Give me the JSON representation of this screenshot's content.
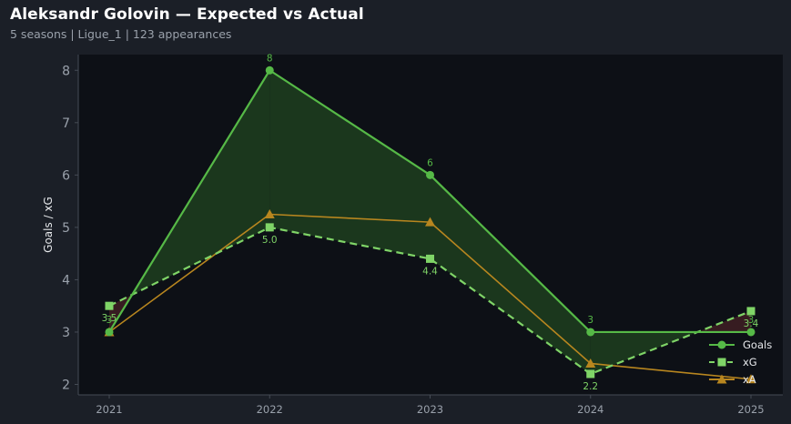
{
  "header": {
    "title": "Aleksandr Golovin — Expected vs Actual",
    "subtitle": "5 seasons | Ligue_1 | 123 appearances"
  },
  "chart_data": {
    "type": "line",
    "x": [
      "2021",
      "2022",
      "2023",
      "2024",
      "2025"
    ],
    "ylabel": "Goals / xG",
    "ylim": [
      1.8,
      8.3
    ],
    "yticks": [
      2,
      3,
      4,
      5,
      6,
      7,
      8
    ],
    "grid": false,
    "legend": "bottom-right",
    "series": [
      {
        "name": "Goals",
        "values": [
          3,
          8,
          6,
          3,
          3
        ],
        "labels": [
          "3",
          "8",
          "6",
          "3",
          "3"
        ],
        "color": "#56b947",
        "marker": "circle",
        "dash": "solid"
      },
      {
        "name": "xG",
        "values": [
          3.5,
          5.0,
          4.4,
          2.2,
          3.4
        ],
        "labels": [
          "3.5",
          "5.0",
          "4.4",
          "2.2",
          "3.4"
        ],
        "color": "#7fd467",
        "marker": "square",
        "dash": "dashed"
      },
      {
        "name": "xA",
        "values": [
          3.0,
          5.25,
          5.1,
          2.4,
          2.1
        ],
        "color": "#b8861f",
        "marker": "triangle",
        "dash": "solid"
      }
    ],
    "fill": {
      "over_color": "#1c3a1d",
      "under_color": "#3a1d22"
    },
    "colors": {
      "plot_bg": "#0d1016",
      "axis": "#454b55"
    }
  }
}
